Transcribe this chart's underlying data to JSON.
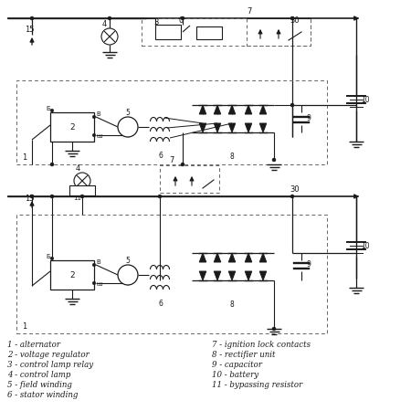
{
  "bg_color": "#ffffff",
  "line_color": "#1a1a1a",
  "legend_left": [
    "1 - alternator",
    "2 - voltage regulator",
    "3 - control lamp relay",
    "4 - control lamp",
    "5 - field winding",
    "6 - stator winding"
  ],
  "legend_right": [
    "7 - ignition lock contacts",
    "8 - rectifier unit",
    "9 - capacitor",
    "10 - battery",
    "11 - bypassing resistor"
  ]
}
